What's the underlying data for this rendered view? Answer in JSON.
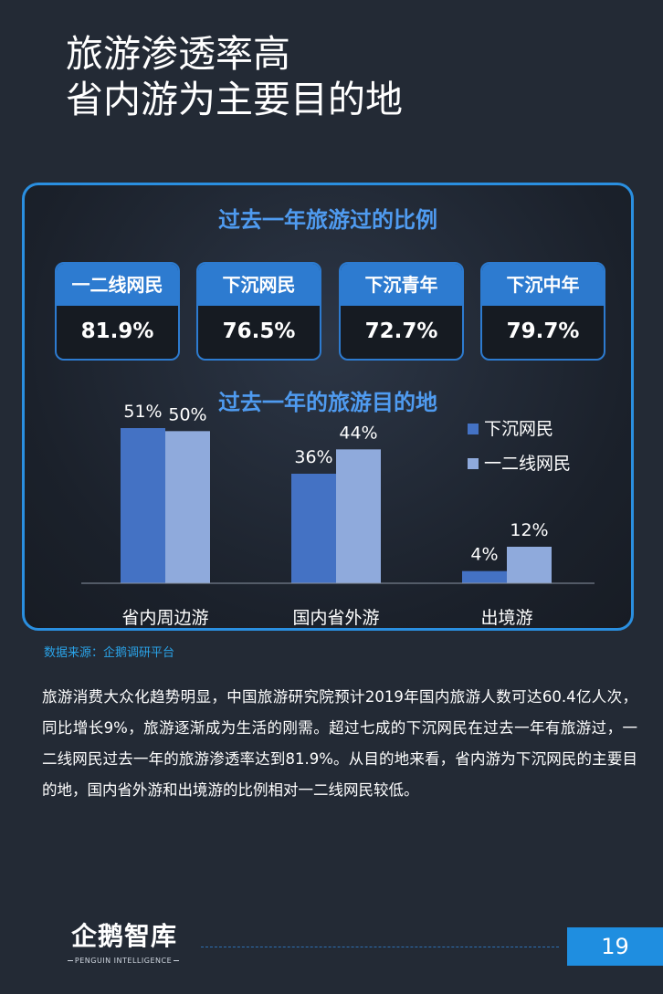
{
  "title": {
    "line1": "旅游渗透率高",
    "line2": "省内游为主要目的地"
  },
  "card": {
    "section1_title": "过去一年旅游过的比例",
    "stats": [
      {
        "label": "一二线网民",
        "value": "81.9%"
      },
      {
        "label": "下沉网民",
        "value": "76.5%"
      },
      {
        "label": "下沉青年",
        "value": "72.7%"
      },
      {
        "label": "下沉中年",
        "value": "79.7%"
      }
    ],
    "section2_title": "过去一年的旅游目的地"
  },
  "chart_data": {
    "type": "bar",
    "title": "过去一年的旅游目的地",
    "categories": [
      "省内周边游",
      "国内省外游",
      "出境游"
    ],
    "series": [
      {
        "name": "下沉网民",
        "color": "#4472c4",
        "values": [
          51,
          36,
          4
        ],
        "labels": [
          "51%",
          "36%",
          "4%"
        ]
      },
      {
        "name": "一二线网民",
        "color": "#8faadc",
        "values": [
          50,
          44,
          12
        ],
        "labels": [
          "50%",
          "44%",
          "12%"
        ]
      }
    ],
    "ylim": [
      0,
      60
    ],
    "legend_position": "top-right",
    "grid": false
  },
  "source": "数据来源：企鹅调研平台",
  "body": "旅游消费大众化趋势明显，中国旅游研究院预计2019年国内旅游人数可达60.4亿人次，同比增长9%，旅游逐渐成为生活的刚需。超过七成的下沉网民在过去一年有旅游过，一二线网民过去一年的旅游渗透率达到81.9%。从目的地来看，省内游为下沉网民的主要目的地，国内省外游和出境游的比例相对一二线网民较低。",
  "footer": {
    "logo_cn": "企鹅智库",
    "logo_en": "PENGUIN INTELLIGENCE",
    "page_number": "19"
  }
}
